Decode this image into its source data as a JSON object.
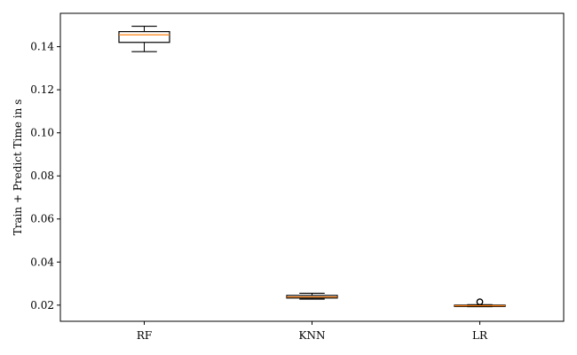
{
  "chart_data": {
    "type": "box",
    "title": "",
    "xlabel": "",
    "ylabel": "Train + Predict Time in s",
    "ylim": [
      0.0125,
      0.1555
    ],
    "yticks": [
      0.02,
      0.04,
      0.06,
      0.08,
      0.1,
      0.12,
      0.14
    ],
    "ytick_labels": [
      "0.02",
      "0.04",
      "0.06",
      "0.08",
      "0.10",
      "0.12",
      "0.14"
    ],
    "categories": [
      "RF",
      "KNN",
      "LR"
    ],
    "grid": false,
    "colors": {
      "box": "#000000",
      "median": "#ff7f0e",
      "axis": "#000000",
      "background": "#ffffff"
    },
    "boxes": [
      {
        "category": "RF",
        "whisker_low": 0.1377,
        "q1": 0.142,
        "median": 0.1455,
        "q3": 0.147,
        "whisker_high": 0.1495,
        "outliers": []
      },
      {
        "category": "KNN",
        "whisker_low": 0.0228,
        "q1": 0.0233,
        "median": 0.0238,
        "q3": 0.0245,
        "whisker_high": 0.0255,
        "outliers": []
      },
      {
        "category": "LR",
        "whisker_low": 0.0193,
        "q1": 0.0195,
        "median": 0.0197,
        "q3": 0.02,
        "whisker_high": 0.0202,
        "outliers": [
          0.0215
        ]
      }
    ]
  }
}
